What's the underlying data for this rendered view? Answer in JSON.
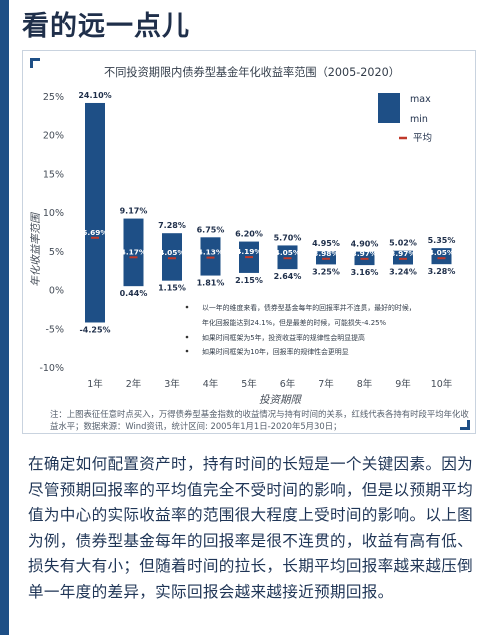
{
  "heading": "看的远一点儿",
  "chart_data": {
    "type": "bar",
    "title": "不同投资期限内债券型基金年化收益率范围（2005-2020）",
    "xlabel": "投资期限",
    "ylabel": "年化收益率范围",
    "ylim": [
      -10,
      25
    ],
    "yticks": [
      "25%",
      "20%",
      "15%",
      "10%",
      "5%",
      "0%",
      "-5%",
      "-10%"
    ],
    "ytick_values": [
      25,
      20,
      15,
      10,
      5,
      0,
      -5,
      -10
    ],
    "categories": [
      "1年",
      "2年",
      "3年",
      "4年",
      "5年",
      "6年",
      "7年",
      "8年",
      "9年",
      "10年"
    ],
    "series": [
      {
        "name": "max",
        "values": [
          24.1,
          9.17,
          7.28,
          6.75,
          6.2,
          5.7,
          4.95,
          4.9,
          5.02,
          5.35
        ],
        "labels": [
          "24.10%",
          "9.17%",
          "7.28%",
          "6.75%",
          "6.20%",
          "5.70%",
          "4.95%",
          "4.90%",
          "5.02%",
          "5.35%"
        ]
      },
      {
        "name": "min",
        "values": [
          -4.25,
          0.44,
          1.15,
          1.81,
          2.15,
          2.64,
          3.25,
          3.16,
          3.24,
          3.28
        ],
        "labels": [
          "-4.25%",
          "0.44%",
          "1.15%",
          "1.81%",
          "2.15%",
          "2.64%",
          "3.25%",
          "3.16%",
          "3.24%",
          "3.28%"
        ]
      },
      {
        "name": "平均",
        "values": [
          6.69,
          4.17,
          4.05,
          4.13,
          4.19,
          4.05,
          3.98,
          3.97,
          3.97,
          4.05
        ],
        "labels": [
          "6.69%",
          "4.17%",
          "4.05%",
          "4.13%",
          "4.19%",
          "4.05%",
          "3.98%",
          "3.97%",
          "3.97%",
          "4.05%"
        ]
      }
    ],
    "legend": {
      "position": "top-right",
      "items": [
        "max",
        "min",
        "平均"
      ]
    },
    "grid": false,
    "annotations": [
      "以一年的维度来看，债券型基金每年的回报率并不连贯，最好的时候，",
      "年化回报能达到24.1%，但是最差的时候，可能损失-4.25%",
      "如果时间框架为5年，投资收益率的规律性会明显提高",
      "如果时间框架为10年，回报率的规律性会更明显"
    ],
    "colors": {
      "bar": "#1e4f86",
      "mean": "#c0392b"
    }
  },
  "note": "注：上图表征任意时点买入，万得债券型基金指数的收益情况与持有时间的关系，红线代表各持有时段平均年化收益水平；数据来源：Wind资讯，统计区间: 2005年1月1日-2020年5月30日；",
  "body_text": "在确定如何配置资产时，持有时间的长短是一个关键因素。因为尽管预期回报率的平均值完全不受时间的影响，但是以预期平均值为中心的实际收益率的范围很大程度上受时间的影响。以上图为例，债券型基金每年的回报率是很不连贯的，收益有高有低、损失有大有小；但随着时间的拉长，长期平均回报率越来越压倒单一年度的差异，实际回报会越来越接近预期回报。"
}
